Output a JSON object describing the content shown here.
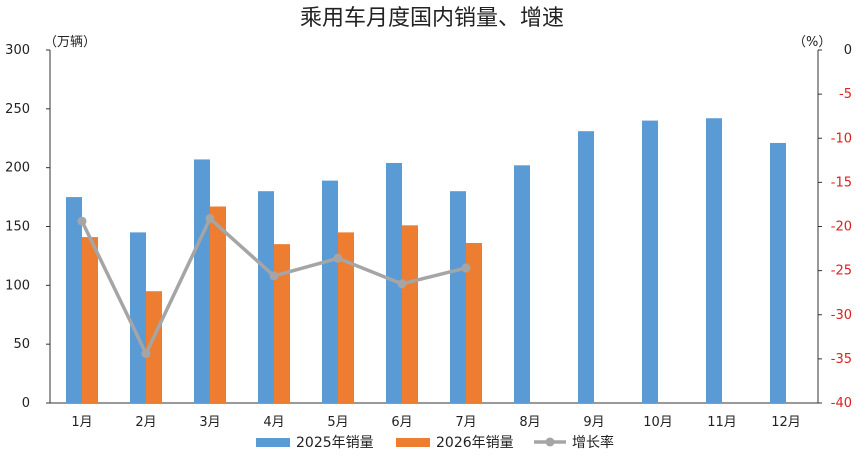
{
  "chart_data": {
    "type": "bar",
    "title": "乘用车月度国内销量、增速",
    "ylabel": "（万辆）",
    "y2label": "（%）",
    "categories": [
      "1月",
      "2月",
      "3月",
      "4月",
      "5月",
      "6月",
      "7月",
      "8月",
      "9月",
      "10月",
      "11月",
      "12月"
    ],
    "ylim": [
      0,
      300
    ],
    "yticks": [
      "0",
      "50",
      "100",
      "150",
      "200",
      "250",
      "300"
    ],
    "y2lim": [
      -40,
      0
    ],
    "y2ticks": [
      "-40",
      "-35",
      "-30",
      "-25",
      "-20",
      "-15",
      "-10",
      "-5",
      "0"
    ],
    "series": [
      {
        "name": "2025年销量",
        "type": "bar",
        "axis": "left",
        "color": "#5b9bd5",
        "values": [
          175,
          145,
          207,
          180,
          189,
          204,
          180,
          202,
          231,
          240,
          242,
          221
        ]
      },
      {
        "name": "2026年销量",
        "type": "bar",
        "axis": "left",
        "color": "#ed7d31",
        "values": [
          141,
          95,
          167,
          135,
          145,
          151,
          136,
          null,
          null,
          null,
          null,
          null
        ]
      },
      {
        "name": "增长率",
        "type": "line",
        "axis": "right",
        "color": "#a5a5a5",
        "values": [
          -19.4,
          -34.4,
          -19.1,
          -25.6,
          -23.6,
          -26.5,
          -24.7,
          null,
          null,
          null,
          null,
          null
        ]
      }
    ],
    "legend": "bottom",
    "grid": false
  }
}
